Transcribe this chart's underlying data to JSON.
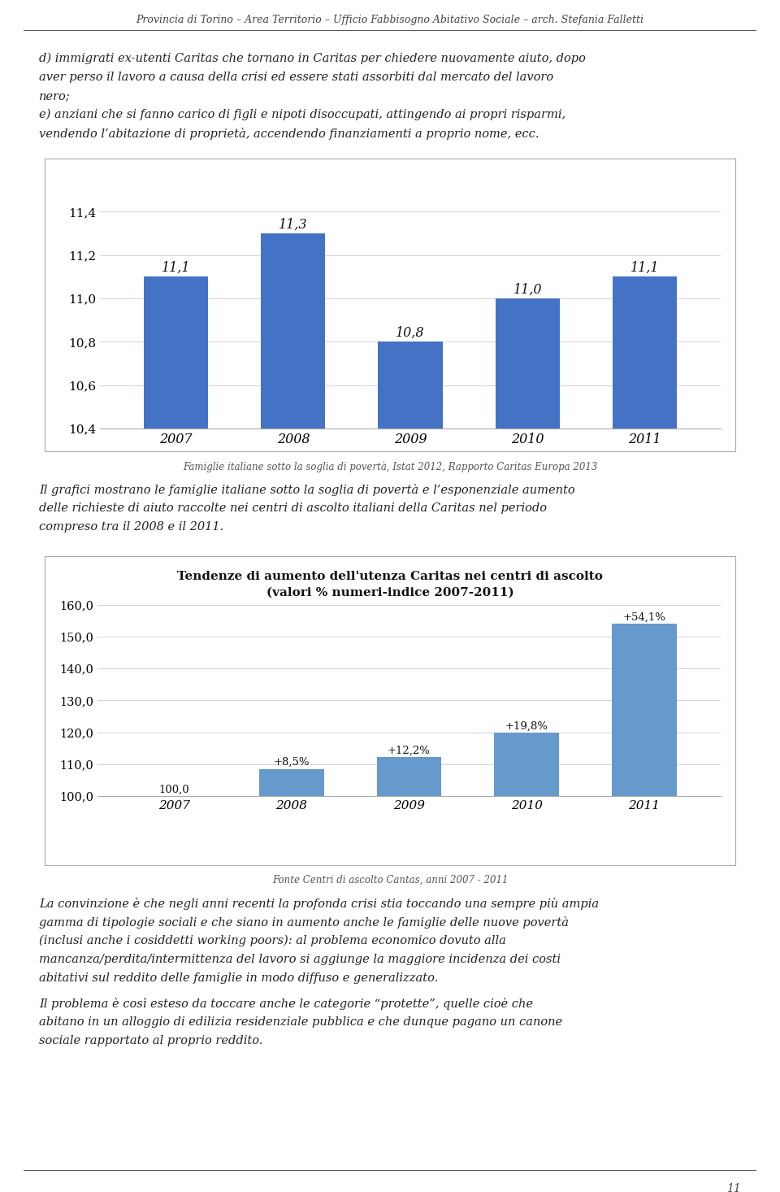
{
  "header": "Provincia di Torino – Area Territorio – Ufficio Fabbisogno Abitativo Sociale – arch. Stefania Falletti",
  "page_number": "11",
  "intro_lines": [
    "d) immigrati ex-utenti Caritas che tornano in Caritas per chiedere nuovamente aiuto, dopo",
    "aver perso il lavoro a causa della crisi ed essere stati assorbiti dal mercato del lavoro",
    "nero;",
    "e) anziani che si fanno carico di figli e nipoti disoccupati, attingendo ai propri risparmi,",
    "vendendo l’abitazione di proprietà, accendendo finanziamenti a proprio nome, ecc."
  ],
  "chart1_years": [
    "2007",
    "2008",
    "2009",
    "2010",
    "2011"
  ],
  "chart1_values": [
    11.1,
    11.3,
    10.8,
    11.0,
    11.1
  ],
  "chart1_ylim": [
    10.4,
    11.45
  ],
  "chart1_yticks": [
    10.4,
    10.6,
    10.8,
    11.0,
    11.2,
    11.4
  ],
  "chart1_bar_color": "#4472C4",
  "chart1_caption": "Famiglie italiane sotto la soglia di povertà, Istat 2012, Rapporto Caritas Europa 2013",
  "middle_lines": [
    "Il grafici mostrano le famiglie italiane sotto la soglia di povertà e l’esponenziale aumento",
    "delle richieste di aiuto raccolte nei centri di ascolto italiani della Caritas nel periodo",
    "compreso tra il 2008 e il 2011."
  ],
  "chart2_title_line1": "Tendenze di aumento dell'utenza Caritas nei centri di ascolto",
  "chart2_title_line2": "(valori % numeri-indice 2007-2011)",
  "chart2_years": [
    "2007",
    "2008",
    "2009",
    "2010",
    "2011"
  ],
  "chart2_values": [
    100.0,
    108.5,
    112.2,
    119.8,
    154.1
  ],
  "chart2_labels": [
    "100,0",
    "+8,5%",
    "+12,2%",
    "+19,8%",
    "+54,1%"
  ],
  "chart2_ylim": [
    100.0,
    162.0
  ],
  "chart2_yticks": [
    100.0,
    110.0,
    120.0,
    130.0,
    140.0,
    150.0,
    160.0
  ],
  "chart2_bar_color": "#6699CC",
  "chart2_caption": "Fonte Centri di ascolto Cantas, anni 2007 - 2011",
  "bottom_lines1": [
    "La convinzione è che negli anni recenti la profonda crisi stia toccando una sempre più ampia",
    "gamma di tipologie sociali e che siano in aumento anche le famiglie delle nuove povertà",
    "(inclusi anche i cosiddetti working poors): al problema economico dovuto alla",
    "mancanza/perdita/intermittenza del lavoro si aggiunge la maggiore incidenza dei costi",
    "abitativi sul reddito delle famiglie in modo diffuso e generalizzato."
  ],
  "bottom_lines2": [
    "Il problema è così esteso da toccare anche le categorie “protette”, quelle cioè che",
    "abitano in un alloggio di edilizia residenziale pubblica e che dunque pagano un canone",
    "sociale rapportato al proprio reddito."
  ],
  "bg_color": "#FFFFFF",
  "text_color": "#222222",
  "chart_bg": "#FFFFFF"
}
